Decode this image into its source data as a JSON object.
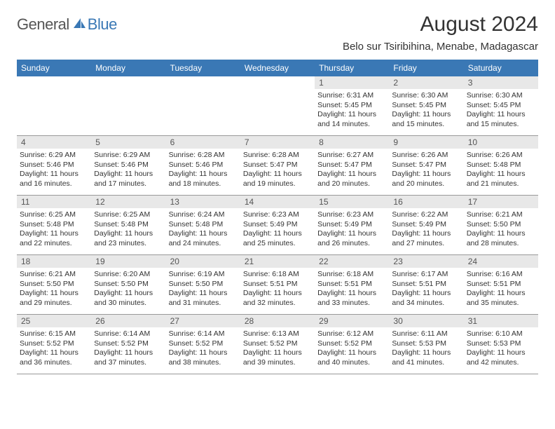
{
  "logo": {
    "text1": "General",
    "text2": "Blue"
  },
  "title": "August 2024",
  "subtitle": "Belo sur Tsiribihina, Menabe, Madagascar",
  "colors": {
    "header_bg": "#3a78b5",
    "header_text": "#ffffff",
    "daynum_bg": "#e8e8e8",
    "text": "#333333",
    "logo_gray": "#555555",
    "logo_blue": "#3a78b5",
    "page_bg": "#ffffff",
    "divider": "#999999"
  },
  "days_of_week": [
    "Sunday",
    "Monday",
    "Tuesday",
    "Wednesday",
    "Thursday",
    "Friday",
    "Saturday"
  ],
  "weeks": [
    [
      {
        "n": "",
        "sunrise": "",
        "sunset": "",
        "daylight": ""
      },
      {
        "n": "",
        "sunrise": "",
        "sunset": "",
        "daylight": ""
      },
      {
        "n": "",
        "sunrise": "",
        "sunset": "",
        "daylight": ""
      },
      {
        "n": "",
        "sunrise": "",
        "sunset": "",
        "daylight": ""
      },
      {
        "n": "1",
        "sunrise": "Sunrise: 6:31 AM",
        "sunset": "Sunset: 5:45 PM",
        "daylight": "Daylight: 11 hours and 14 minutes."
      },
      {
        "n": "2",
        "sunrise": "Sunrise: 6:30 AM",
        "sunset": "Sunset: 5:45 PM",
        "daylight": "Daylight: 11 hours and 15 minutes."
      },
      {
        "n": "3",
        "sunrise": "Sunrise: 6:30 AM",
        "sunset": "Sunset: 5:45 PM",
        "daylight": "Daylight: 11 hours and 15 minutes."
      }
    ],
    [
      {
        "n": "4",
        "sunrise": "Sunrise: 6:29 AM",
        "sunset": "Sunset: 5:46 PM",
        "daylight": "Daylight: 11 hours and 16 minutes."
      },
      {
        "n": "5",
        "sunrise": "Sunrise: 6:29 AM",
        "sunset": "Sunset: 5:46 PM",
        "daylight": "Daylight: 11 hours and 17 minutes."
      },
      {
        "n": "6",
        "sunrise": "Sunrise: 6:28 AM",
        "sunset": "Sunset: 5:46 PM",
        "daylight": "Daylight: 11 hours and 18 minutes."
      },
      {
        "n": "7",
        "sunrise": "Sunrise: 6:28 AM",
        "sunset": "Sunset: 5:47 PM",
        "daylight": "Daylight: 11 hours and 19 minutes."
      },
      {
        "n": "8",
        "sunrise": "Sunrise: 6:27 AM",
        "sunset": "Sunset: 5:47 PM",
        "daylight": "Daylight: 11 hours and 20 minutes."
      },
      {
        "n": "9",
        "sunrise": "Sunrise: 6:26 AM",
        "sunset": "Sunset: 5:47 PM",
        "daylight": "Daylight: 11 hours and 20 minutes."
      },
      {
        "n": "10",
        "sunrise": "Sunrise: 6:26 AM",
        "sunset": "Sunset: 5:48 PM",
        "daylight": "Daylight: 11 hours and 21 minutes."
      }
    ],
    [
      {
        "n": "11",
        "sunrise": "Sunrise: 6:25 AM",
        "sunset": "Sunset: 5:48 PM",
        "daylight": "Daylight: 11 hours and 22 minutes."
      },
      {
        "n": "12",
        "sunrise": "Sunrise: 6:25 AM",
        "sunset": "Sunset: 5:48 PM",
        "daylight": "Daylight: 11 hours and 23 minutes."
      },
      {
        "n": "13",
        "sunrise": "Sunrise: 6:24 AM",
        "sunset": "Sunset: 5:48 PM",
        "daylight": "Daylight: 11 hours and 24 minutes."
      },
      {
        "n": "14",
        "sunrise": "Sunrise: 6:23 AM",
        "sunset": "Sunset: 5:49 PM",
        "daylight": "Daylight: 11 hours and 25 minutes."
      },
      {
        "n": "15",
        "sunrise": "Sunrise: 6:23 AM",
        "sunset": "Sunset: 5:49 PM",
        "daylight": "Daylight: 11 hours and 26 minutes."
      },
      {
        "n": "16",
        "sunrise": "Sunrise: 6:22 AM",
        "sunset": "Sunset: 5:49 PM",
        "daylight": "Daylight: 11 hours and 27 minutes."
      },
      {
        "n": "17",
        "sunrise": "Sunrise: 6:21 AM",
        "sunset": "Sunset: 5:50 PM",
        "daylight": "Daylight: 11 hours and 28 minutes."
      }
    ],
    [
      {
        "n": "18",
        "sunrise": "Sunrise: 6:21 AM",
        "sunset": "Sunset: 5:50 PM",
        "daylight": "Daylight: 11 hours and 29 minutes."
      },
      {
        "n": "19",
        "sunrise": "Sunrise: 6:20 AM",
        "sunset": "Sunset: 5:50 PM",
        "daylight": "Daylight: 11 hours and 30 minutes."
      },
      {
        "n": "20",
        "sunrise": "Sunrise: 6:19 AM",
        "sunset": "Sunset: 5:50 PM",
        "daylight": "Daylight: 11 hours and 31 minutes."
      },
      {
        "n": "21",
        "sunrise": "Sunrise: 6:18 AM",
        "sunset": "Sunset: 5:51 PM",
        "daylight": "Daylight: 11 hours and 32 minutes."
      },
      {
        "n": "22",
        "sunrise": "Sunrise: 6:18 AM",
        "sunset": "Sunset: 5:51 PM",
        "daylight": "Daylight: 11 hours and 33 minutes."
      },
      {
        "n": "23",
        "sunrise": "Sunrise: 6:17 AM",
        "sunset": "Sunset: 5:51 PM",
        "daylight": "Daylight: 11 hours and 34 minutes."
      },
      {
        "n": "24",
        "sunrise": "Sunrise: 6:16 AM",
        "sunset": "Sunset: 5:51 PM",
        "daylight": "Daylight: 11 hours and 35 minutes."
      }
    ],
    [
      {
        "n": "25",
        "sunrise": "Sunrise: 6:15 AM",
        "sunset": "Sunset: 5:52 PM",
        "daylight": "Daylight: 11 hours and 36 minutes."
      },
      {
        "n": "26",
        "sunrise": "Sunrise: 6:14 AM",
        "sunset": "Sunset: 5:52 PM",
        "daylight": "Daylight: 11 hours and 37 minutes."
      },
      {
        "n": "27",
        "sunrise": "Sunrise: 6:14 AM",
        "sunset": "Sunset: 5:52 PM",
        "daylight": "Daylight: 11 hours and 38 minutes."
      },
      {
        "n": "28",
        "sunrise": "Sunrise: 6:13 AM",
        "sunset": "Sunset: 5:52 PM",
        "daylight": "Daylight: 11 hours and 39 minutes."
      },
      {
        "n": "29",
        "sunrise": "Sunrise: 6:12 AM",
        "sunset": "Sunset: 5:52 PM",
        "daylight": "Daylight: 11 hours and 40 minutes."
      },
      {
        "n": "30",
        "sunrise": "Sunrise: 6:11 AM",
        "sunset": "Sunset: 5:53 PM",
        "daylight": "Daylight: 11 hours and 41 minutes."
      },
      {
        "n": "31",
        "sunrise": "Sunrise: 6:10 AM",
        "sunset": "Sunset: 5:53 PM",
        "daylight": "Daylight: 11 hours and 42 minutes."
      }
    ]
  ]
}
